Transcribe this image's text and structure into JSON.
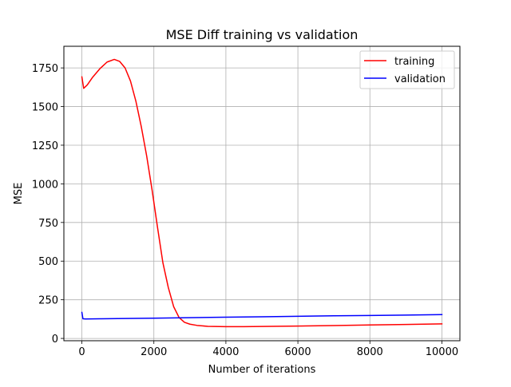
{
  "chart_data": {
    "type": "line",
    "title": "MSE Diff training vs validation",
    "xlabel": "Number of iterations",
    "ylabel": "MSE",
    "xlim": [
      -500,
      10500
    ],
    "ylim": [
      -15,
      1890
    ],
    "xticks": [
      0,
      2000,
      4000,
      6000,
      8000,
      10000
    ],
    "yticks": [
      0,
      250,
      500,
      750,
      1000,
      1250,
      1500,
      1750
    ],
    "xtick_labels": [
      "0",
      "2000",
      "4000",
      "6000",
      "8000",
      "10000"
    ],
    "ytick_labels": [
      "0",
      "250",
      "500",
      "750",
      "1000",
      "1250",
      "1500",
      "1750"
    ],
    "grid": true,
    "legend_position": "top-right",
    "series": [
      {
        "name": "training",
        "color": "#ff0000",
        "x": [
          0,
          50,
          150,
          300,
          500,
          700,
          900,
          1050,
          1200,
          1350,
          1500,
          1650,
          1800,
          1950,
          2100,
          2250,
          2400,
          2550,
          2700,
          2850,
          3000,
          3200,
          3500,
          4000,
          4500,
          5000,
          6000,
          7000,
          8000,
          9000,
          10000
        ],
        "y": [
          1692,
          1618,
          1640,
          1690,
          1745,
          1788,
          1805,
          1792,
          1750,
          1665,
          1535,
          1370,
          1180,
          960,
          720,
          490,
          330,
          205,
          135,
          104,
          92,
          84,
          78,
          76,
          76,
          77,
          80,
          83,
          87,
          90,
          94
        ]
      },
      {
        "name": "validation",
        "color": "#0000ff",
        "x": [
          0,
          30,
          100,
          500,
          1000,
          2000,
          3000,
          4000,
          5000,
          6000,
          7000,
          8000,
          9000,
          10000
        ],
        "y": [
          168,
          127,
          126,
          127,
          128,
          131,
          134,
          137,
          140,
          143,
          146,
          148,
          151,
          154
        ]
      }
    ]
  }
}
